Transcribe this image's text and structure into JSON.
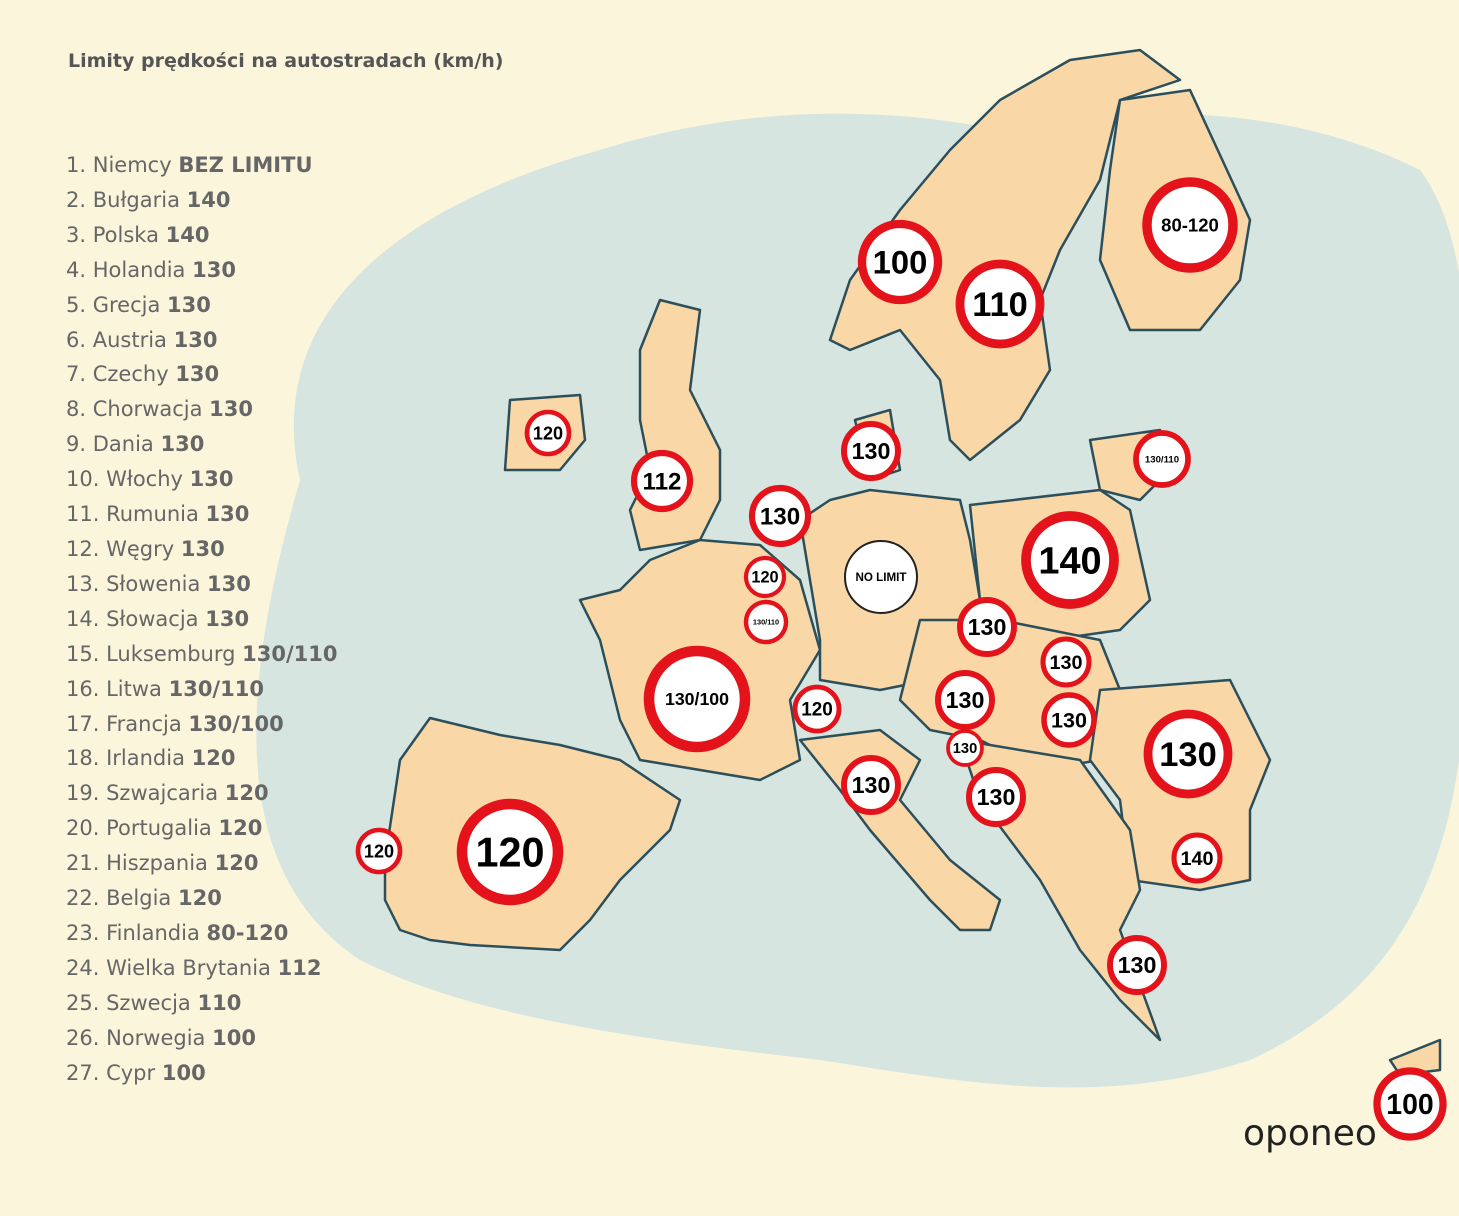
{
  "header": {
    "title": "Limity prędkości na autostradach (km/h)"
  },
  "list": [
    {
      "rank": "1.",
      "country": "Niemcy",
      "limit": "BEZ LIMITU"
    },
    {
      "rank": "2.",
      "country": "Bułgaria",
      "limit": "140"
    },
    {
      "rank": "3.",
      "country": "Polska",
      "limit": "140"
    },
    {
      "rank": "4.",
      "country": "Holandia",
      "limit": "130"
    },
    {
      "rank": "5.",
      "country": "Grecja",
      "limit": "130"
    },
    {
      "rank": "6.",
      "country": "Austria",
      "limit": "130"
    },
    {
      "rank": "7.",
      "country": "Czechy",
      "limit": "130"
    },
    {
      "rank": "8.",
      "country": "Chorwacja",
      "limit": "130"
    },
    {
      "rank": "9.",
      "country": "Dania",
      "limit": "130"
    },
    {
      "rank": "10.",
      "country": "Włochy",
      "limit": "130"
    },
    {
      "rank": "11.",
      "country": "Rumunia",
      "limit": "130"
    },
    {
      "rank": "12.",
      "country": "Węgry",
      "limit": "130"
    },
    {
      "rank": "13.",
      "country": "Słowenia",
      "limit": "130"
    },
    {
      "rank": "14.",
      "country": "Słowacja",
      "limit": "130"
    },
    {
      "rank": "15.",
      "country": "Luksemburg",
      "limit": "130/110"
    },
    {
      "rank": "16.",
      "country": "Litwa",
      "limit": "130/110"
    },
    {
      "rank": "17.",
      "country": "Francja",
      "limit": "130/100"
    },
    {
      "rank": "18.",
      "country": "Irlandia",
      "limit": "120"
    },
    {
      "rank": "19.",
      "country": "Szwajcaria",
      "limit": "120"
    },
    {
      "rank": "20.",
      "country": "Portugalia",
      "limit": "120"
    },
    {
      "rank": "21.",
      "country": "Hiszpania",
      "limit": "120"
    },
    {
      "rank": "22.",
      "country": "Belgia",
      "limit": "120"
    },
    {
      "rank": "23.",
      "country": "Finlandia",
      "limit": "80-120"
    },
    {
      "rank": "24.",
      "country": "Wielka Brytania",
      "limit": "112"
    },
    {
      "rank": "25.",
      "country": "Szwecja",
      "limit": "110"
    },
    {
      "rank": "26.",
      "country": "Norwegia",
      "limit": "100"
    },
    {
      "rank": "27.",
      "country": "Cypr",
      "limit": "100"
    }
  ],
  "signs": [
    {
      "label": "100"
    },
    {
      "label": "110"
    },
    {
      "label": "80-120"
    },
    {
      "label": "120"
    },
    {
      "label": "112"
    },
    {
      "label": "130"
    },
    {
      "label": "130/110"
    },
    {
      "label": "130"
    },
    {
      "label": "120"
    },
    {
      "label": "130/110"
    },
    {
      "label": "NO LIMIT"
    },
    {
      "label": "140"
    },
    {
      "label": "130"
    },
    {
      "label": "130"
    },
    {
      "label": "130"
    },
    {
      "label": "130"
    },
    {
      "label": "130"
    },
    {
      "label": "130"
    },
    {
      "label": "120"
    },
    {
      "label": "130/100"
    },
    {
      "label": "130"
    },
    {
      "label": "130"
    },
    {
      "label": "140"
    },
    {
      "label": "130"
    },
    {
      "label": "120"
    },
    {
      "label": "120"
    },
    {
      "label": "100"
    }
  ],
  "logo": "oponeo"
}
